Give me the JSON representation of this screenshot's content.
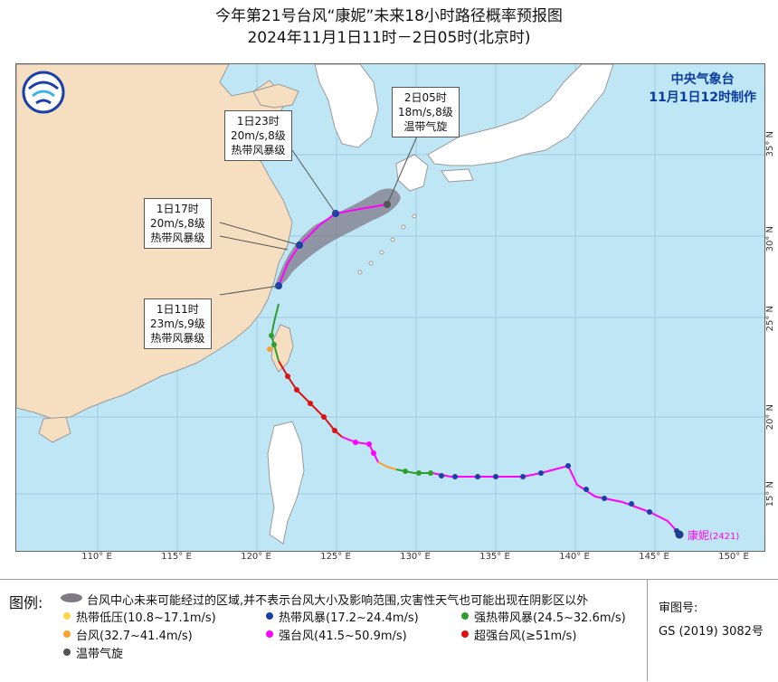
{
  "title": {
    "line1": "今年第21号台风“康妮”未来18小时路径概率预报图",
    "line2": "2024年11月1日11时－2日05时(北京时)"
  },
  "agency": {
    "name": "中央气象台",
    "issued": "11月1日12时制作"
  },
  "map": {
    "lon_ticks": [
      "110° E",
      "115° E",
      "120° E",
      "125° E",
      "130° E",
      "135° E",
      "140° E",
      "145° E",
      "150° E"
    ],
    "lat_ticks": [
      "15° N",
      "20° N",
      "25° N",
      "30° N",
      "35° N"
    ],
    "colors": {
      "sea": "#bfe6f5",
      "land": "#f5dfc0",
      "border": "#9a9a9a",
      "cone": "#7f7a86",
      "track": "#ff00ff",
      "forecast_track": "#ff00ff"
    }
  },
  "callouts": [
    {
      "time": "2日05时",
      "wind": "18m/s,8级",
      "category": "温带气旋"
    },
    {
      "time": "1日23时",
      "wind": "20m/s,8级",
      "category": "热带风暴级"
    },
    {
      "time": "1日17时",
      "wind": "20m/s,8级",
      "category": "热带风暴级"
    },
    {
      "time": "1日11时",
      "wind": "23m/s,9级",
      "category": "热带风暴级"
    }
  ],
  "typhoon_label": {
    "name": "康妮",
    "code": "(2421)"
  },
  "legend": {
    "title": "图例:",
    "cone_text": "台风中心未来可能经过的区域,并不表示台风大小及影响范围,灾害性天气也可能出现在阴影区以外",
    "items": [
      {
        "label": "热带低压(10.8~17.1m/s)",
        "color": "#ffd54a"
      },
      {
        "label": "热带风暴(17.2~24.4m/s)",
        "color": "#1a3fa8"
      },
      {
        "label": "强热带风暴(24.5~32.6m/s)",
        "color": "#2e9e2e"
      },
      {
        "label": "台风(32.7~41.4m/s)",
        "color": "#ff9f2e"
      },
      {
        "label": "强台风(41.5~50.9m/s)",
        "color": "#ff00ff"
      },
      {
        "label": "超强台风(≥51m/s)",
        "color": "#e01010"
      },
      {
        "label": "温带气旋",
        "color": "#555555"
      }
    ]
  },
  "approval": {
    "label": "审图号:",
    "number": "GS (2019) 3082号"
  }
}
